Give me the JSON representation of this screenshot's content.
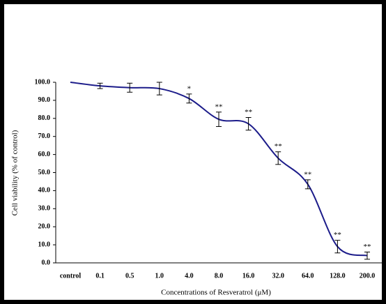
{
  "chart_data": {
    "type": "line",
    "xlabel": "Concentrations of Resveratrol (μM)",
    "ylabel": "Cell viability (% of control)",
    "categories": [
      "control",
      "0.1",
      "0.5",
      "1.0",
      "4.0",
      "8.0",
      "16.0",
      "32.0",
      "64.0",
      "128.0",
      "200.0"
    ],
    "series": [
      {
        "color": "#1c1c8a",
        "values": [
          100,
          98,
          97,
          96.5,
          91,
          79.5,
          77,
          58,
          43.5,
          9,
          4
        ],
        "errors": [
          null,
          1.5,
          2.5,
          3.5,
          2.5,
          4,
          3.5,
          3.5,
          2.5,
          3.5,
          2
        ],
        "annotations": [
          null,
          null,
          null,
          null,
          "*",
          "**",
          "**",
          "**",
          "**",
          "**",
          "**"
        ]
      }
    ],
    "ylim": [
      0,
      100
    ],
    "yticks": [
      {
        "value": 0,
        "label": "0.0"
      },
      {
        "value": 10,
        "label": "10.0"
      },
      {
        "value": 20,
        "label": "20.0"
      },
      {
        "value": 30,
        "label": "30.0"
      },
      {
        "value": 40,
        "label": "40.0"
      },
      {
        "value": 50,
        "label": "50.0"
      },
      {
        "value": 60,
        "label": "60.0"
      },
      {
        "value": 70,
        "label": "70.0"
      },
      {
        "value": 80,
        "label": "80.0"
      },
      {
        "value": 90,
        "label": "90.0"
      },
      {
        "value": 100,
        "label": "100.0"
      }
    ]
  }
}
